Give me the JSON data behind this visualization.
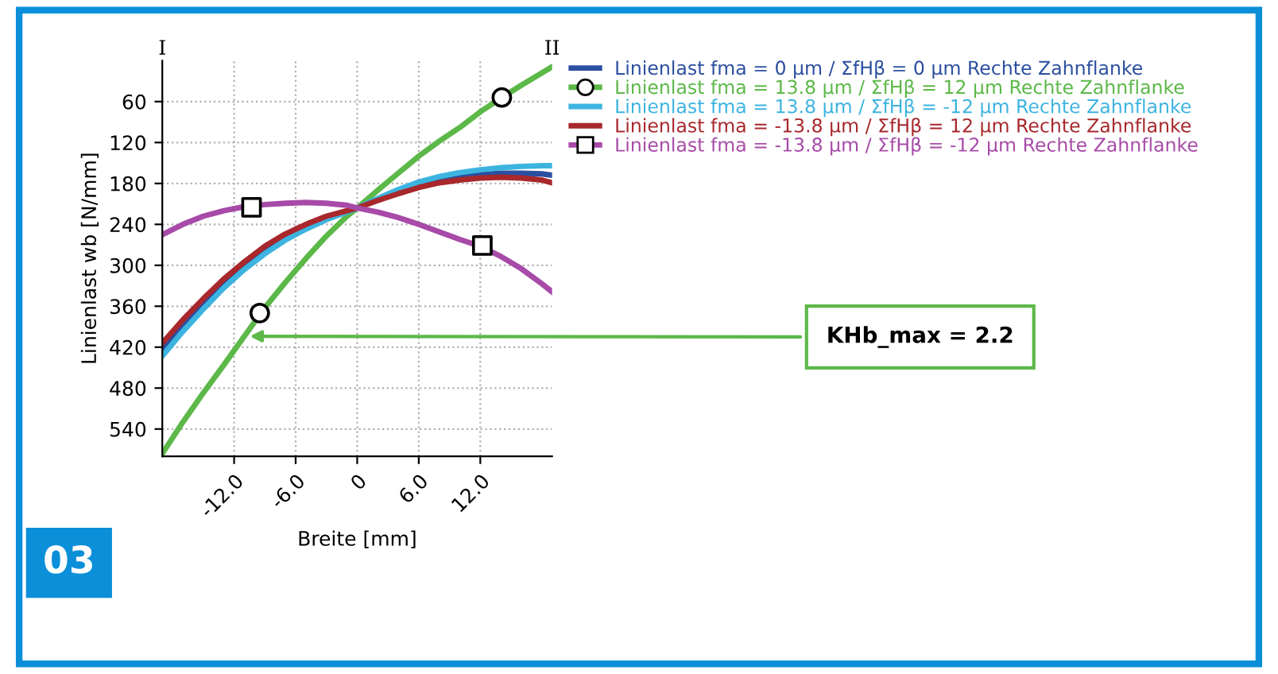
{
  "chart_data": {
    "type": "line",
    "xlabel": "Breite [mm]",
    "ylabel": "Linienlast wb [N/mm]",
    "x": [
      -19,
      -17,
      -15,
      -13,
      -11,
      -9,
      -7,
      -5,
      -3,
      -1,
      0,
      2,
      4,
      6,
      8,
      10,
      12,
      14,
      16,
      18,
      19
    ],
    "xlim": [
      -19,
      19
    ],
    "xticks": [
      {
        "value": -12,
        "label": "-12.0"
      },
      {
        "value": -6,
        "label": "-6.0"
      },
      0,
      {
        "value": 6,
        "label": "6.0"
      },
      {
        "value": 12,
        "label": "12.0"
      }
    ],
    "ylim": [
      580,
      0
    ],
    "yticks": [
      60,
      120,
      180,
      240,
      300,
      360,
      420,
      480,
      540
    ],
    "grid": true,
    "legend": "top right",
    "series": [
      {
        "name": "Linienlast fma = 0 µm / ΣfHβ = 0 µm Rechte Zahnflanke",
        "color": "#2b4fa0",
        "marker": "none",
        "values": [
          425,
          390,
          357,
          327,
          300,
          278,
          259,
          244,
          231,
          221,
          216,
          203,
          192,
          182,
          175,
          170,
          167,
          165,
          165,
          166,
          168
        ]
      },
      {
        "name": "Linienlast fma = 13.8 µm / ΣfHβ = 12 µm Rechte Zahnflanke",
        "color": "#5cb848",
        "marker": "none",
        "values": [
          576,
          530,
          487,
          446,
          404,
          362,
          325,
          290,
          257,
          228,
          216,
          190,
          165,
          140,
          118,
          98,
          75,
          55,
          36,
          18,
          9
        ]
      },
      {
        "type": "scatter",
        "color": "#000000",
        "marker": "circle",
        "x": [
          -9.5,
          14.1
        ],
        "values": [
          370,
          54
        ]
      },
      {
        "name": "Linienlast fma = 13.8 µm / ΣfHβ = -12 µm Rechte Zahnflanke",
        "color": "#3db4e0",
        "marker": "none",
        "values": [
          433,
          397,
          364,
          333,
          306,
          283,
          263,
          247,
          233,
          222,
          216,
          202,
          189,
          178,
          170,
          164,
          160,
          157,
          155,
          154,
          154
        ]
      },
      {
        "name": "Linienlast fma = -13.8 µm / ΣfHβ = 12 µm Rechte Zahnflanke",
        "color": "#a8282c",
        "marker": "none",
        "values": [
          414,
          380,
          349,
          320,
          295,
          272,
          254,
          240,
          228,
          220,
          216,
          205,
          195,
          186,
          179,
          175,
          172,
          171,
          172,
          175,
          179
        ]
      },
      {
        "name": "Linienlast fma = -13.8 µm / ΣfHβ = -12 µm Rechte Zahnflanke",
        "color": "#a74aa8",
        "marker": "none",
        "values": [
          255,
          240,
          228,
          220,
          214,
          211,
          209,
          208,
          209,
          212,
          216,
          222,
          230,
          240,
          251,
          262,
          272,
          287,
          305,
          327,
          339
        ]
      },
      {
        "type": "scatter",
        "color": "#000000",
        "marker": "square",
        "x": [
          -10.3,
          12.2
        ],
        "values": [
          215,
          271
        ]
      }
    ],
    "annotations": [
      {
        "text": "KHb_max = 2.2",
        "x": -10.9,
        "y": 404
      },
      "I",
      "II",
      "03"
    ]
  }
}
